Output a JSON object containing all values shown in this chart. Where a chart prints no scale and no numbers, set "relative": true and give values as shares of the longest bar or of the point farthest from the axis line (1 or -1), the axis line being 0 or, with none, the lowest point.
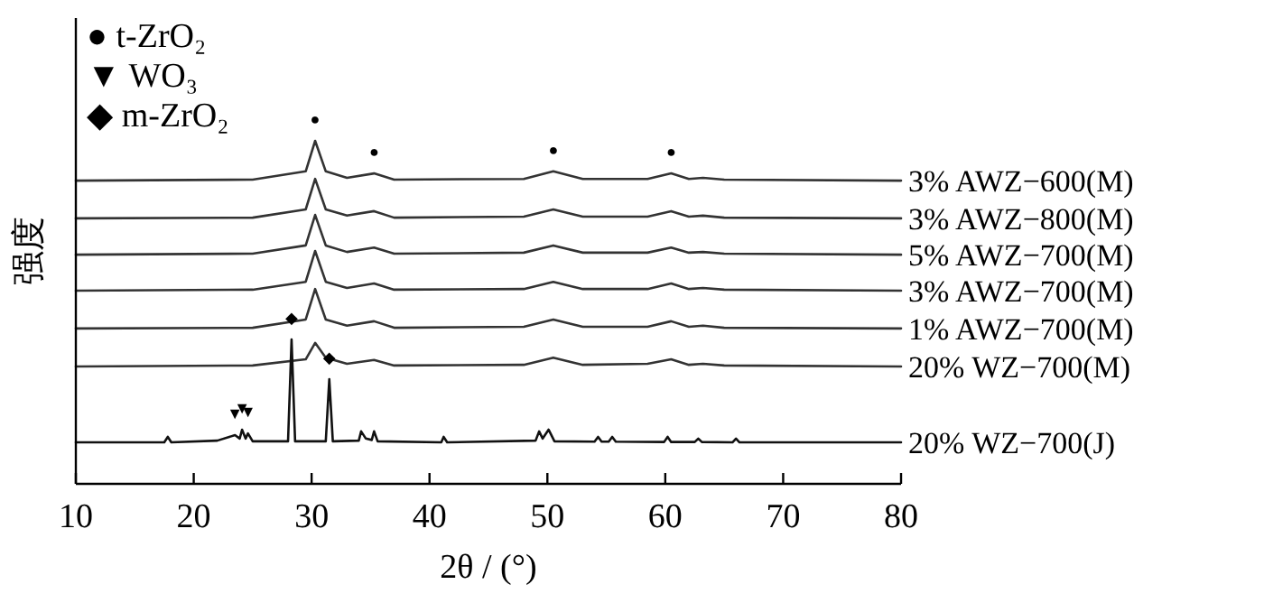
{
  "chart_data": {
    "type": "line",
    "relative": true,
    "xlabel": "2θ / (°)",
    "ylabel": "强度",
    "xlim": [
      10,
      80
    ],
    "xticks": [
      10,
      20,
      30,
      40,
      50,
      60,
      70,
      80
    ],
    "grid": false,
    "marker": "none",
    "line_style": "solid",
    "annotations": [
      "● t-ZrO₂",
      "▼ WO₃",
      "◆ m-ZrO₂",
      {
        "text": "●",
        "x": 30.3,
        "y": 1.0
      },
      {
        "text": "●",
        "x": 35.3,
        "y": 0.905
      },
      {
        "text": "●",
        "x": 50.5,
        "y": 0.911
      },
      {
        "text": "●",
        "x": 60.5,
        "y": 0.905
      },
      {
        "text": "◆",
        "x": 28.3,
        "y": 0.421
      },
      {
        "text": "◆",
        "x": 31.5,
        "y": 0.305
      },
      {
        "text": "▼",
        "x": 23.5,
        "y": 0.142
      },
      {
        "text": "▼",
        "x": 24.1,
        "y": 0.158
      },
      {
        "text": "▼",
        "x": 24.6,
        "y": 0.147
      }
    ],
    "x": [
      10,
      25,
      29.5,
      30.3,
      31.2,
      33,
      35.3,
      37,
      48,
      50.5,
      53,
      58.5,
      60.5,
      62,
      63.2,
      65,
      80
    ],
    "series": [
      {
        "name": "3% AWZ−600(M)",
        "color": "#333333",
        "values": [
          0.884,
          0.887,
          0.911,
          1.0,
          0.911,
          0.892,
          0.905,
          0.887,
          0.889,
          0.911,
          0.889,
          0.889,
          0.905,
          0.889,
          0.892,
          0.887,
          0.884
        ]
      },
      {
        "name": "3% AWZ−800(M)",
        "color": "#333333",
        "values": [
          0.774,
          0.776,
          0.8,
          0.889,
          0.8,
          0.782,
          0.795,
          0.776,
          0.779,
          0.8,
          0.779,
          0.779,
          0.795,
          0.779,
          0.782,
          0.776,
          0.774
        ]
      },
      {
        "name": "5% AWZ−700(M)",
        "color": "#333333",
        "values": [
          0.668,
          0.671,
          0.695,
          0.784,
          0.695,
          0.676,
          0.689,
          0.671,
          0.674,
          0.695,
          0.674,
          0.674,
          0.689,
          0.674,
          0.676,
          0.671,
          0.668
        ]
      },
      {
        "name": "3% AWZ−700(M)",
        "color": "#333333",
        "values": [
          0.563,
          0.566,
          0.589,
          0.679,
          0.589,
          0.571,
          0.584,
          0.566,
          0.568,
          0.589,
          0.568,
          0.568,
          0.584,
          0.568,
          0.571,
          0.566,
          0.563
        ]
      },
      {
        "name": "1% AWZ−700(M)",
        "color": "#333333",
        "values": [
          0.453,
          0.455,
          0.479,
          0.568,
          0.479,
          0.461,
          0.474,
          0.455,
          0.458,
          0.479,
          0.458,
          0.458,
          0.474,
          0.458,
          0.461,
          0.455,
          0.453
        ]
      },
      {
        "name": "20% WZ−700(M)",
        "color": "#333333",
        "values": [
          0.342,
          0.345,
          0.363,
          0.411,
          0.368,
          0.35,
          0.361,
          0.345,
          0.347,
          0.368,
          0.347,
          0.35,
          0.363,
          0.347,
          0.35,
          0.345,
          0.342
        ]
      },
      {
        "name": "20% WZ−700(J)",
        "color": "#111111",
        "x": [
          10,
          17.5,
          17.8,
          18.1,
          22,
          23.5,
          23.9,
          24.1,
          24.4,
          24.6,
          25,
          28,
          28.3,
          28.6,
          31.2,
          31.5,
          31.8,
          34,
          34.2,
          34.6,
          35.1,
          35.3,
          35.6,
          41,
          41.2,
          41.5,
          49,
          49.3,
          49.6,
          50.1,
          50.6,
          54,
          54.3,
          54.6,
          55.2,
          55.5,
          55.8,
          59.9,
          60.2,
          60.5,
          62.5,
          62.8,
          63.1,
          65.7,
          66,
          66.3,
          80
        ],
        "values": [
          0.121,
          0.121,
          0.137,
          0.121,
          0.126,
          0.142,
          0.132,
          0.158,
          0.132,
          0.147,
          0.124,
          0.124,
          0.421,
          0.124,
          0.124,
          0.305,
          0.124,
          0.126,
          0.153,
          0.132,
          0.128,
          0.153,
          0.124,
          0.121,
          0.137,
          0.121,
          0.126,
          0.153,
          0.132,
          0.158,
          0.124,
          0.123,
          0.137,
          0.123,
          0.123,
          0.137,
          0.123,
          0.122,
          0.137,
          0.122,
          0.122,
          0.132,
          0.122,
          0.121,
          0.132,
          0.121,
          0.121
        ]
      }
    ]
  }
}
